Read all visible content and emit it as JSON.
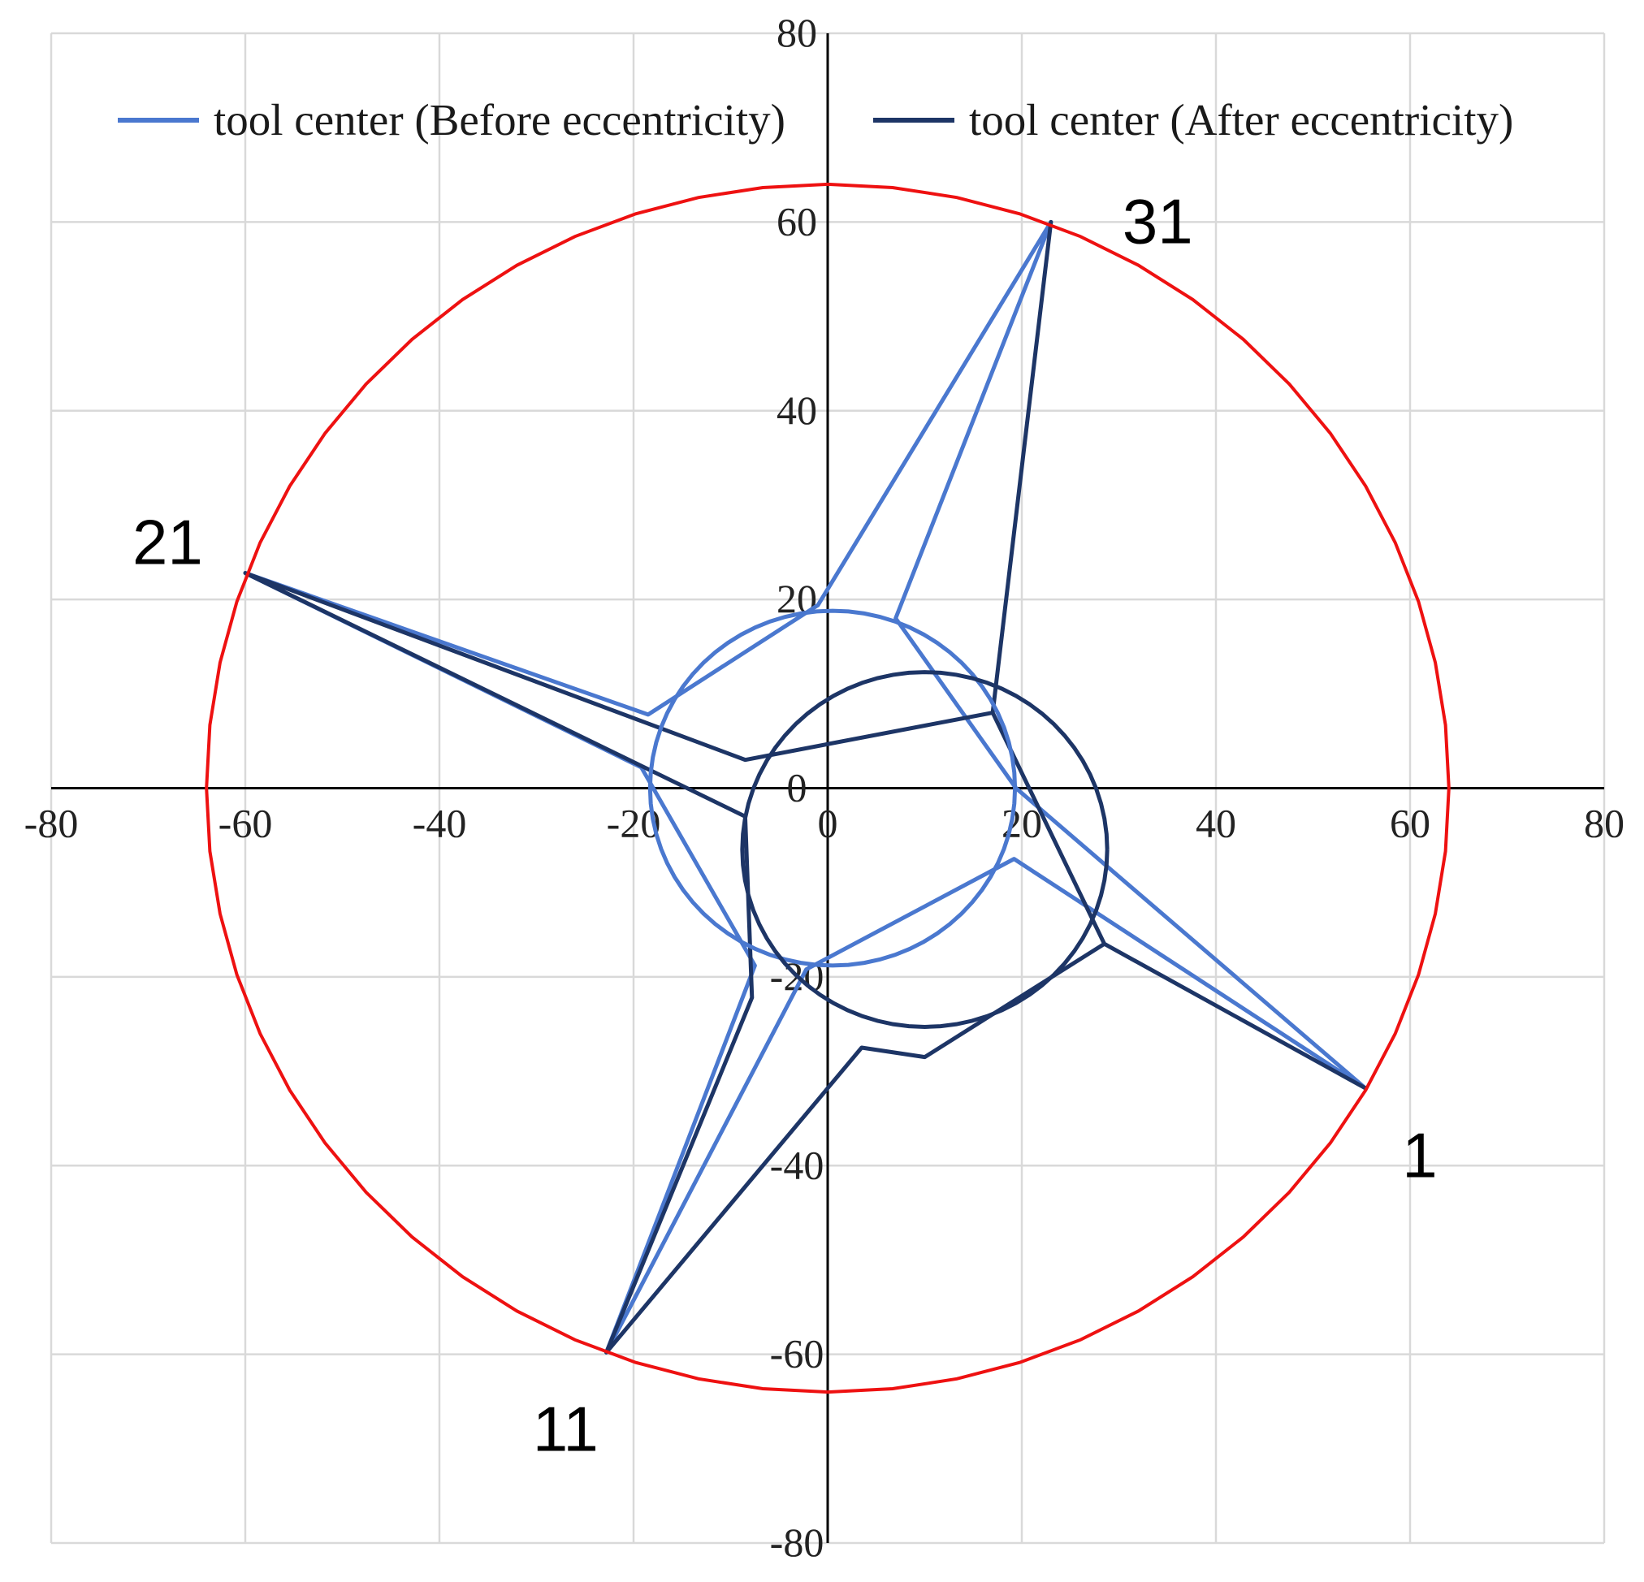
{
  "chart_data": {
    "type": "scatter",
    "title": "",
    "xlabel": "",
    "ylabel": "",
    "xlim": [
      -80,
      80
    ],
    "ylim": [
      -80,
      80
    ],
    "x_ticks": [
      -80,
      -60,
      -40,
      -20,
      0,
      20,
      40,
      60,
      80
    ],
    "y_ticks": [
      -80,
      -60,
      -40,
      -20,
      0,
      20,
      40,
      60,
      80
    ],
    "x_tick_labels": [
      "-80",
      "-60",
      "-40",
      "-20",
      "0",
      "20",
      "40",
      "60",
      "80"
    ],
    "y_tick_labels": [
      "-80",
      "-60",
      "-40",
      "-20",
      "0",
      "20",
      "40",
      "60",
      "80"
    ],
    "grid": true,
    "axes_through_origin": true,
    "legend_position": "top",
    "series": [
      {
        "name": "tool center (Before eccentricity)",
        "color": "#4a78cf",
        "points": [
          [
            55.4,
            -31.8
          ],
          [
            19.2,
            -7.5
          ],
          [
            -2.2,
            -19.2
          ],
          [
            -22.8,
            -59.8
          ],
          [
            -22.8,
            -59.8
          ],
          [
            -7.5,
            -18.8
          ],
          [
            -19.2,
            2.2
          ],
          [
            -60.0,
            22.8
          ],
          [
            -60.0,
            22.8
          ],
          [
            -18.5,
            7.8
          ],
          [
            -1.0,
            19.4
          ],
          [
            23.0,
            60.0
          ],
          [
            23.0,
            60.0
          ],
          [
            7.0,
            18.0
          ],
          [
            19.4,
            0.0
          ],
          [
            55.4,
            -31.8
          ]
        ]
      },
      {
        "name": "tool center (After eccentricity)",
        "color": "#1d3566",
        "points": [
          [
            55.4,
            -31.8
          ],
          [
            28.5,
            -16.5
          ],
          [
            10.0,
            -28.5
          ],
          [
            3.5,
            -27.5
          ],
          [
            -22.8,
            -59.8
          ],
          [
            -22.8,
            -59.8
          ],
          [
            -7.8,
            -22.2
          ],
          [
            -8.5,
            -3.0
          ],
          [
            -60.0,
            22.8
          ],
          [
            -60.0,
            22.8
          ],
          [
            -8.5,
            3.0
          ],
          [
            17.0,
            8.0
          ],
          [
            23.0,
            60.0
          ],
          [
            23.0,
            60.0
          ],
          [
            17.0,
            8.0
          ],
          [
            28.5,
            -16.5
          ],
          [
            55.4,
            -31.8
          ]
        ]
      },
      {
        "name": "",
        "color": "#ee1111",
        "shape": "circle",
        "center": [
          0,
          0
        ],
        "radius": 64
      }
    ],
    "annotations": [
      {
        "text": "1",
        "x": 61,
        "y": -39
      },
      {
        "text": "11",
        "x": -27,
        "y": -68
      },
      {
        "text": "21",
        "x": -68,
        "y": 26
      },
      {
        "text": "31",
        "x": 34,
        "y": 60
      }
    ]
  }
}
